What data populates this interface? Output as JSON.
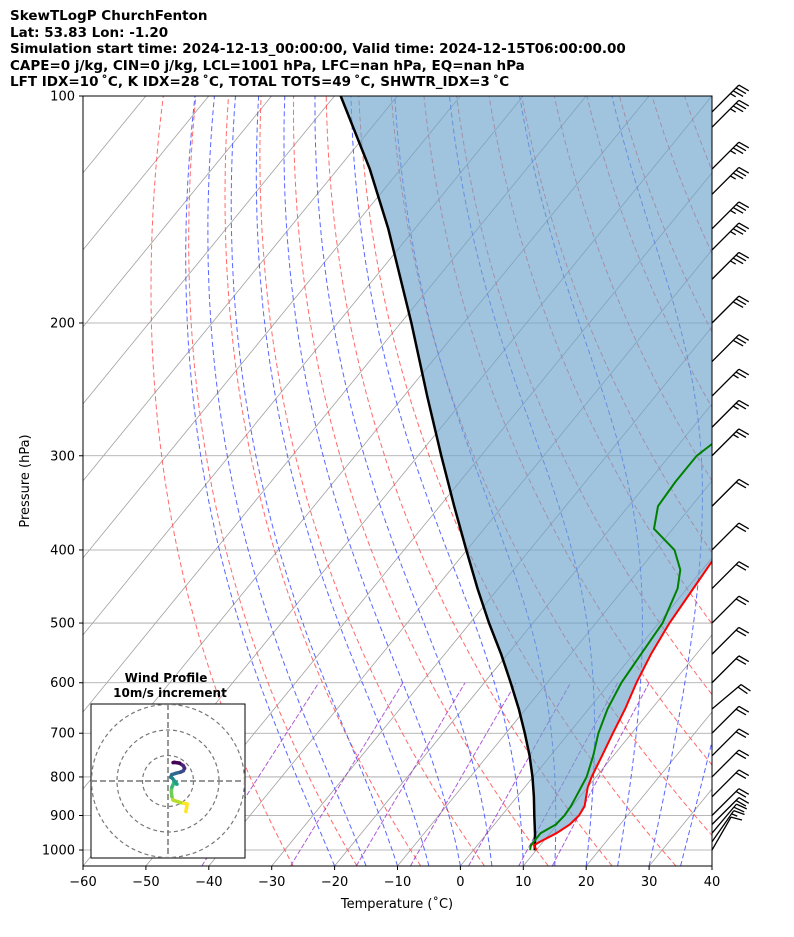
{
  "header": {
    "title": "SkewTLogP ChurchFenton",
    "location": "Lat: 53.83   Lon: -1.20",
    "times": "Simulation start time: 2024-12-13_00:00:00, Valid time: 2024-12-15T06:00:00.00",
    "params": "CAPE=0 j/kg, CIN=0 j/kg, LCL=1001 hPa, LFC=nan hPa, EQ=nan hPa",
    "indices": "LFT IDX=10 ˚C, K IDX=28 ˚C, TOTAL TOTS=49 ˚C, SHWTR_IDX=3 ˚C"
  },
  "chart_data": [
    {
      "type": "line",
      "subtype": "skew-T log-P",
      "xlabel": "Temperature (˚C)",
      "ylabel": "Pressure (hPa)",
      "xlim": [
        -60,
        40
      ],
      "ylim": [
        1050,
        100
      ],
      "x_ticks": [
        "−60",
        "−50",
        "−40",
        "−30",
        "−20",
        "−10",
        "0",
        "10",
        "20",
        "30",
        "40"
      ],
      "y_ticks": [
        "100",
        "200",
        "300",
        "400",
        "500",
        "600",
        "700",
        "800",
        "900",
        "1000"
      ],
      "y_scale": "log",
      "grid": true,
      "colors": {
        "temperature": "#ff0000",
        "dewpoint": "#008000",
        "parcel": "#000000",
        "cape_shade": "#6fa5cd",
        "dry_adiabat": "#ff5050",
        "moist_adiabat": "#3b4cff",
        "mixing_ratio": "#9a32cd",
        "isotherm": "#a0a0a0"
      },
      "series": [
        {
          "key": "temperature",
          "points": [
            [
              1000,
              10
            ],
            [
              985,
              9
            ],
            [
              975,
              9.5
            ],
            [
              950,
              11
            ],
            [
              925,
              12
            ],
            [
              900,
              12.3
            ],
            [
              875,
              12
            ],
            [
              850,
              11
            ],
            [
              825,
              10
            ],
            [
              800,
              9.3
            ],
            [
              750,
              8.2
            ],
            [
              700,
              7
            ],
            [
              650,
              5.8
            ],
            [
              600,
              4.2
            ],
            [
              550,
              2.8
            ],
            [
              500,
              1.7
            ],
            [
              450,
              1
            ],
            [
              400,
              0.2
            ],
            [
              375,
              0
            ],
            [
              350,
              -1
            ],
            [
              325,
              -2.5
            ],
            [
              300,
              -4.5
            ],
            [
              275,
              -6.5
            ],
            [
              250,
              -8.5
            ],
            [
              225,
              -10.3
            ],
            [
              200,
              -12.3
            ],
            [
              190,
              -12
            ],
            [
              175,
              -11.7
            ],
            [
              160,
              -11.7
            ],
            [
              150,
              -12
            ],
            [
              140,
              -11.5
            ],
            [
              125,
              -11
            ],
            [
              110,
              -12.2
            ],
            [
              100,
              -14.2
            ]
          ]
        },
        {
          "key": "dewpoint",
          "points": [
            [
              1000,
              9
            ],
            [
              985,
              8.5
            ],
            [
              950,
              8.5
            ],
            [
              925,
              9.8
            ],
            [
              900,
              10
            ],
            [
              875,
              9.8
            ],
            [
              850,
              9.4
            ],
            [
              800,
              8.5
            ],
            [
              750,
              6.8
            ],
            [
              700,
              4.7
            ],
            [
              650,
              3
            ],
            [
              600,
              1.8
            ],
            [
              550,
              1.2
            ],
            [
              500,
              0.6
            ],
            [
              450,
              -1.5
            ],
            [
              425,
              -3.5
            ],
            [
              400,
              -7
            ],
            [
              375,
              -13
            ],
            [
              350,
              -15.3
            ],
            [
              325,
              -15.7
            ],
            [
              300,
              -15.7
            ],
            [
              275,
              -13.5
            ],
            [
              250,
              -14.8
            ],
            [
              225,
              -16.5
            ],
            [
              200,
              -18.5
            ],
            [
              185,
              -20.5
            ],
            [
              175,
              -18.5
            ],
            [
              160,
              -19.5
            ],
            [
              140,
              -19.5
            ],
            [
              125,
              -19.5
            ],
            [
              110,
              -21.5
            ],
            [
              100,
              -25
            ]
          ]
        },
        {
          "key": "parcel",
          "points": [
            [
              1001,
              9.8
            ],
            [
              950,
              7.6
            ],
            [
              900,
              5.2
            ],
            [
              850,
              2.7
            ],
            [
              800,
              -0.1
            ],
            [
              750,
              -3.3
            ],
            [
              700,
              -7
            ],
            [
              650,
              -11.1
            ],
            [
              600,
              -15.8
            ],
            [
              550,
              -21
            ],
            [
              500,
              -27
            ],
            [
              450,
              -33.3
            ],
            [
              400,
              -40.1
            ],
            [
              350,
              -47.7
            ],
            [
              300,
              -56.3
            ],
            [
              250,
              -66.3
            ],
            [
              200,
              -78.3
            ],
            [
              150,
              -94.2
            ],
            [
              125,
              -104.9
            ],
            [
              100,
              -119
            ]
          ]
        }
      ],
      "wind_barbs": [
        {
          "p": 1000,
          "speed_kt": 10,
          "dir_deg": 210
        },
        {
          "p": 975,
          "speed_kt": 15,
          "dir_deg": 215
        },
        {
          "p": 950,
          "speed_kt": 20,
          "dir_deg": 220
        },
        {
          "p": 925,
          "speed_kt": 20,
          "dir_deg": 225
        },
        {
          "p": 900,
          "speed_kt": 20,
          "dir_deg": 225
        },
        {
          "p": 850,
          "speed_kt": 20,
          "dir_deg": 225
        },
        {
          "p": 800,
          "speed_kt": 20,
          "dir_deg": 225
        },
        {
          "p": 750,
          "speed_kt": 20,
          "dir_deg": 225
        },
        {
          "p": 700,
          "speed_kt": 20,
          "dir_deg": 225
        },
        {
          "p": 650,
          "speed_kt": 20,
          "dir_deg": 230
        },
        {
          "p": 600,
          "speed_kt": 20,
          "dir_deg": 225
        },
        {
          "p": 550,
          "speed_kt": 20,
          "dir_deg": 225
        },
        {
          "p": 500,
          "speed_kt": 20,
          "dir_deg": 225
        },
        {
          "p": 450,
          "speed_kt": 20,
          "dir_deg": 225
        },
        {
          "p": 400,
          "speed_kt": 20,
          "dir_deg": 225
        },
        {
          "p": 350,
          "speed_kt": 20,
          "dir_deg": 225
        },
        {
          "p": 300,
          "speed_kt": 25,
          "dir_deg": 225
        },
        {
          "p": 275,
          "speed_kt": 25,
          "dir_deg": 225
        },
        {
          "p": 250,
          "speed_kt": 25,
          "dir_deg": 225
        },
        {
          "p": 225,
          "speed_kt": 30,
          "dir_deg": 225
        },
        {
          "p": 200,
          "speed_kt": 30,
          "dir_deg": 225
        },
        {
          "p": 175,
          "speed_kt": 35,
          "dir_deg": 225
        },
        {
          "p": 160,
          "speed_kt": 35,
          "dir_deg": 225
        },
        {
          "p": 150,
          "speed_kt": 35,
          "dir_deg": 225
        },
        {
          "p": 135,
          "speed_kt": 35,
          "dir_deg": 225
        },
        {
          "p": 125,
          "speed_kt": 35,
          "dir_deg": 225
        },
        {
          "p": 110,
          "speed_kt": 35,
          "dir_deg": 225
        },
        {
          "p": 105,
          "speed_kt": 35,
          "dir_deg": 225
        }
      ]
    },
    {
      "type": "line",
      "subtype": "hodograph",
      "title": "Wind Profile",
      "subtitle": "10m/s increment",
      "ring_radii_ms": [
        10,
        20,
        30
      ],
      "colormap": "viridis",
      "points": [
        [
          7,
          -12
        ],
        [
          7.3,
          -10.5
        ],
        [
          7.5,
          -9
        ],
        [
          5,
          -8.5
        ],
        [
          2,
          -7.5
        ],
        [
          1.5,
          -6
        ],
        [
          1.3,
          -4
        ],
        [
          1.5,
          -2.5
        ],
        [
          2.2,
          -1
        ],
        [
          3.5,
          -1.2
        ],
        [
          2.5,
          0
        ],
        [
          1.8,
          1
        ],
        [
          1,
          1.5
        ],
        [
          1.5,
          2.5
        ],
        [
          3,
          3
        ],
        [
          5,
          3.5
        ],
        [
          6,
          4
        ],
        [
          6.5,
          5
        ],
        [
          6,
          6
        ],
        [
          4.5,
          7
        ],
        [
          2.5,
          7.3
        ],
        [
          2,
          7.2
        ]
      ]
    }
  ]
}
